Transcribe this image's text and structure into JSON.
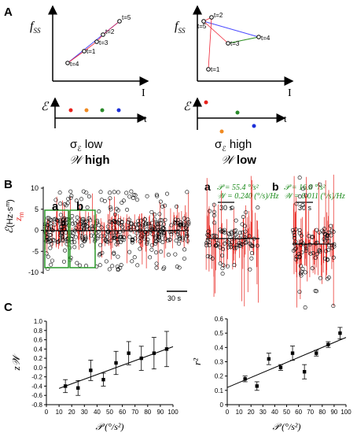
{
  "panelA": {
    "letter": "A",
    "fss": "f",
    "fss_sub": "SS",
    "I": "I",
    "eps": "ℰ",
    "t": "t",
    "left": {
      "points": [
        "t=5",
        "t=2",
        "t=3",
        "t=1",
        "t=4"
      ],
      "line1": "σ",
      "line1_sub": "ℰ",
      "line1_rest": " low",
      "line2_w": "𝒲",
      "line2_rest": " high"
    },
    "right": {
      "points": [
        "t=2",
        "t=5",
        "t=3",
        "t=4",
        "t=1"
      ],
      "line1": "σ",
      "line1_sub": "ℰ",
      "line1_rest": " high",
      "line2_w": "𝒲",
      "line2_rest": " low"
    },
    "dot_colors": [
      "#e8211b",
      "#f08a21",
      "#2a8a2a",
      "#1c2fd8"
    ]
  },
  "panelB": {
    "letter": "B",
    "ylabel_a": "ℰ",
    "ylabel_b": "(Hz",
    "ylabel_c": "s",
    "ylabel_d": ")",
    "ylabel_z": "z",
    "ylabel_zsub": "m",
    "yticks": [
      "10",
      "5",
      "0",
      "-5",
      "-10"
    ],
    "box_a": "a",
    "box_b": "b",
    "scale": "30 s",
    "inset_a": {
      "letter": "a",
      "P": "𝒫 = 55.4 °/s²",
      "W": "𝒲 = 0.240 (°/s)/Hz",
      "scale": "30 s"
    },
    "inset_b": {
      "letter": "b",
      "P": "𝒫 = 16.8 °/s²",
      "W": "𝒲 = 0.011 (°/s)/Hz",
      "scale": "30 s"
    }
  },
  "panelC": {
    "letter": "C",
    "chart_data": [
      {
        "type": "scatter",
        "ylabel": "z𝒲",
        "xlabel": "𝒫 (°/s²)",
        "xlim": [
          0,
          100
        ],
        "ylim": [
          -0.8,
          1.0
        ],
        "xticks": [
          "0",
          "10",
          "20",
          "30",
          "40",
          "50",
          "60",
          "70",
          "80",
          "90",
          "100"
        ],
        "yticks": [
          "1.0",
          "0.8",
          "0.6",
          "0.4",
          "0.2",
          "0.0",
          "-0.2",
          "-0.4",
          "-0.6",
          "-0.8"
        ],
        "x": [
          15,
          25,
          35,
          45,
          55,
          65,
          75,
          85,
          95
        ],
        "y": [
          -0.4,
          -0.44,
          -0.06,
          -0.26,
          0.1,
          0.31,
          0.2,
          0.31,
          0.4
        ],
        "err": [
          0.14,
          0.16,
          0.22,
          0.14,
          0.25,
          0.25,
          0.26,
          0.34,
          0.38
        ],
        "fit": [
          [
            10,
            -0.45
          ],
          [
            100,
            0.45
          ]
        ]
      },
      {
        "type": "scatter",
        "ylabel": "r²",
        "xlabel": "𝒫 (°/s²)",
        "xlim": [
          0,
          100
        ],
        "ylim": [
          0,
          0.6
        ],
        "xticks": [
          "0",
          "10",
          "20",
          "30",
          "40",
          "50",
          "60",
          "70",
          "80",
          "90",
          "100"
        ],
        "yticks": [
          "0.6",
          "0.5",
          "0.4",
          "0.3",
          "0.2",
          "0.1",
          "0"
        ],
        "x": [
          15,
          25,
          35,
          45,
          55,
          65,
          75,
          85,
          95
        ],
        "y": [
          0.18,
          0.13,
          0.32,
          0.26,
          0.36,
          0.23,
          0.36,
          0.42,
          0.5
        ],
        "err": [
          0.02,
          0.03,
          0.04,
          0.02,
          0.05,
          0.05,
          0.02,
          0.02,
          0.04
        ],
        "fit": [
          [
            0,
            0.12
          ],
          [
            100,
            0.47
          ]
        ]
      }
    ]
  }
}
